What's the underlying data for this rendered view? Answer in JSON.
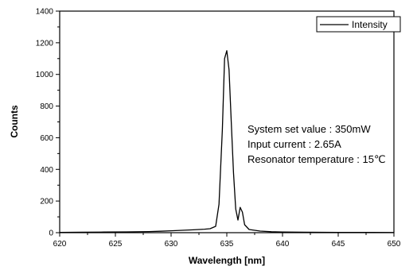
{
  "chart_data": {
    "type": "line",
    "title": "",
    "xlabel": "Wavelength [nm]",
    "ylabel": "Counts",
    "xlim": [
      620,
      650
    ],
    "ylim": [
      0,
      1400
    ],
    "xticks": [
      620,
      625,
      630,
      635,
      640,
      645,
      650
    ],
    "yticks": [
      0,
      200,
      400,
      600,
      800,
      1000,
      1200,
      1400
    ],
    "grid": false,
    "legend_position": "top-right",
    "series": [
      {
        "name": "Intensity",
        "color": "#000000",
        "x": [
          620,
          622,
          624,
          626,
          628,
          629,
          630,
          631,
          632,
          632.5,
          633,
          633.5,
          634,
          634.3,
          634.6,
          634.8,
          635,
          635.2,
          635.4,
          635.6,
          635.8,
          636,
          636.2,
          636.4,
          636.6,
          637,
          637.5,
          638,
          639,
          640,
          642,
          645,
          648,
          650
        ],
        "y": [
          2,
          3,
          4,
          5,
          7,
          9,
          12,
          15,
          18,
          20,
          22,
          25,
          40,
          180,
          650,
          1100,
          1150,
          1030,
          700,
          380,
          150,
          80,
          160,
          130,
          50,
          20,
          15,
          10,
          6,
          4,
          3,
          2,
          2,
          1
        ]
      }
    ],
    "annotations": [
      "System set value : 350mW",
      "Input current : 2.65A",
      "Resonator temperature : 15℃"
    ]
  }
}
